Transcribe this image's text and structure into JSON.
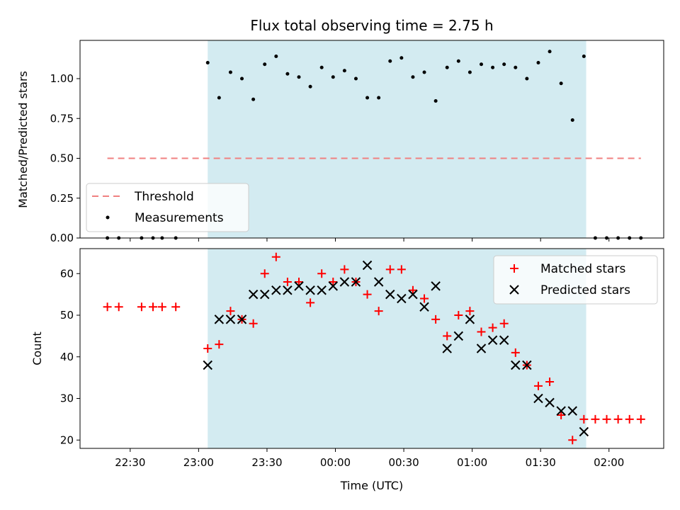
{
  "title": "Flux total observing time = 2.75 h",
  "xlabel": "Time (UTC)",
  "chart_data": [
    {
      "type": "scatter",
      "panel": "top",
      "ylabel": "Matched/Predicted stars",
      "ylim": [
        0,
        1.24
      ],
      "yticks": [
        "0.00",
        "0.25",
        "0.50",
        "0.75",
        "1.00"
      ],
      "threshold": {
        "name": "Threshold",
        "value": 0.5,
        "x_range": [
          "22:20",
          "02:14"
        ],
        "color": "#f08080"
      },
      "series": [
        {
          "name": "Measurements",
          "color": "#000000",
          "points": [
            [
              "22:20",
              0
            ],
            [
              "22:25",
              0
            ],
            [
              "22:35",
              0
            ],
            [
              "22:40",
              0
            ],
            [
              "22:44",
              0
            ],
            [
              "22:50",
              0
            ],
            [
              "23:04",
              1.1
            ],
            [
              "23:09",
              0.88
            ],
            [
              "23:14",
              1.04
            ],
            [
              "23:19",
              1.0
            ],
            [
              "23:24",
              0.87
            ],
            [
              "23:29",
              1.09
            ],
            [
              "23:34",
              1.14
            ],
            [
              "23:39",
              1.03
            ],
            [
              "23:44",
              1.01
            ],
            [
              "23:49",
              0.95
            ],
            [
              "23:54",
              1.07
            ],
            [
              "23:59",
              1.01
            ],
            [
              "00:04",
              1.05
            ],
            [
              "00:09",
              1.0
            ],
            [
              "00:14",
              0.88
            ],
            [
              "00:19",
              0.88
            ],
            [
              "00:24",
              1.11
            ],
            [
              "00:29",
              1.13
            ],
            [
              "00:34",
              1.01
            ],
            [
              "00:39",
              1.04
            ],
            [
              "00:44",
              0.86
            ],
            [
              "00:49",
              1.07
            ],
            [
              "00:54",
              1.11
            ],
            [
              "00:59",
              1.04
            ],
            [
              "01:04",
              1.09
            ],
            [
              "01:09",
              1.07
            ],
            [
              "01:14",
              1.09
            ],
            [
              "01:19",
              1.07
            ],
            [
              "01:24",
              1.0
            ],
            [
              "01:29",
              1.1
            ],
            [
              "01:34",
              1.17
            ],
            [
              "01:39",
              0.97
            ],
            [
              "01:44",
              0.74
            ],
            [
              "01:49",
              1.14
            ],
            [
              "01:54",
              0
            ],
            [
              "01:59",
              0
            ],
            [
              "02:04",
              0
            ],
            [
              "02:09",
              0
            ],
            [
              "02:14",
              0
            ]
          ]
        }
      ],
      "legend": {
        "position": "lower-left",
        "entries": [
          "Threshold",
          "Measurements"
        ]
      }
    },
    {
      "type": "scatter",
      "panel": "bottom",
      "ylabel": "Count",
      "ylim": [
        18,
        66
      ],
      "yticks": [
        "20",
        "30",
        "40",
        "50",
        "60"
      ],
      "series": [
        {
          "name": "Matched stars",
          "color": "#ff0000",
          "marker": "plus",
          "points": [
            [
              "22:20",
              52
            ],
            [
              "22:25",
              52
            ],
            [
              "22:35",
              52
            ],
            [
              "22:40",
              52
            ],
            [
              "22:44",
              52
            ],
            [
              "22:50",
              52
            ],
            [
              "23:04",
              42
            ],
            [
              "23:09",
              43
            ],
            [
              "23:14",
              51
            ],
            [
              "23:19",
              49
            ],
            [
              "23:24",
              48
            ],
            [
              "23:29",
              60
            ],
            [
              "23:34",
              64
            ],
            [
              "23:39",
              58
            ],
            [
              "23:44",
              58
            ],
            [
              "23:49",
              53
            ],
            [
              "23:54",
              60
            ],
            [
              "23:59",
              58
            ],
            [
              "00:04",
              61
            ],
            [
              "00:09",
              58
            ],
            [
              "00:14",
              55
            ],
            [
              "00:19",
              51
            ],
            [
              "00:24",
              61
            ],
            [
              "00:29",
              61
            ],
            [
              "00:34",
              56
            ],
            [
              "00:39",
              54
            ],
            [
              "00:44",
              49
            ],
            [
              "00:49",
              45
            ],
            [
              "00:54",
              50
            ],
            [
              "00:59",
              51
            ],
            [
              "01:04",
              46
            ],
            [
              "01:09",
              47
            ],
            [
              "01:14",
              48
            ],
            [
              "01:19",
              41
            ],
            [
              "01:24",
              38
            ],
            [
              "01:29",
              33
            ],
            [
              "01:34",
              34
            ],
            [
              "01:39",
              26
            ],
            [
              "01:44",
              20
            ],
            [
              "01:49",
              25
            ],
            [
              "01:54",
              25
            ],
            [
              "01:59",
              25
            ],
            [
              "02:04",
              25
            ],
            [
              "02:09",
              25
            ],
            [
              "02:14",
              25
            ]
          ]
        },
        {
          "name": "Predicted stars",
          "color": "#000000",
          "marker": "x",
          "points": [
            [
              "23:04",
              38
            ],
            [
              "23:09",
              49
            ],
            [
              "23:14",
              49
            ],
            [
              "23:19",
              49
            ],
            [
              "23:24",
              55
            ],
            [
              "23:29",
              55
            ],
            [
              "23:34",
              56
            ],
            [
              "23:39",
              56
            ],
            [
              "23:44",
              57
            ],
            [
              "23:49",
              56
            ],
            [
              "23:54",
              56
            ],
            [
              "23:59",
              57
            ],
            [
              "00:04",
              58
            ],
            [
              "00:09",
              58
            ],
            [
              "00:14",
              62
            ],
            [
              "00:19",
              58
            ],
            [
              "00:24",
              55
            ],
            [
              "00:29",
              54
            ],
            [
              "00:34",
              55
            ],
            [
              "00:39",
              52
            ],
            [
              "00:44",
              57
            ],
            [
              "00:49",
              42
            ],
            [
              "00:54",
              45
            ],
            [
              "00:59",
              49
            ],
            [
              "01:04",
              42
            ],
            [
              "01:09",
              44
            ],
            [
              "01:14",
              44
            ],
            [
              "01:19",
              38
            ],
            [
              "01:24",
              38
            ],
            [
              "01:29",
              30
            ],
            [
              "01:34",
              29
            ],
            [
              "01:39",
              27
            ],
            [
              "01:44",
              27
            ],
            [
              "01:49",
              22
            ]
          ]
        }
      ],
      "legend": {
        "position": "upper-right",
        "entries": [
          "Matched stars",
          "Predicted stars"
        ]
      }
    }
  ],
  "xaxis": {
    "range": [
      "22:08",
      "02:24"
    ],
    "ticks": [
      "22:30",
      "23:00",
      "23:30",
      "00:00",
      "00:30",
      "01:00",
      "01:30",
      "02:00"
    ]
  },
  "observing_window": {
    "start": "23:04",
    "end": "01:50",
    "color": "#d3ebf1"
  }
}
